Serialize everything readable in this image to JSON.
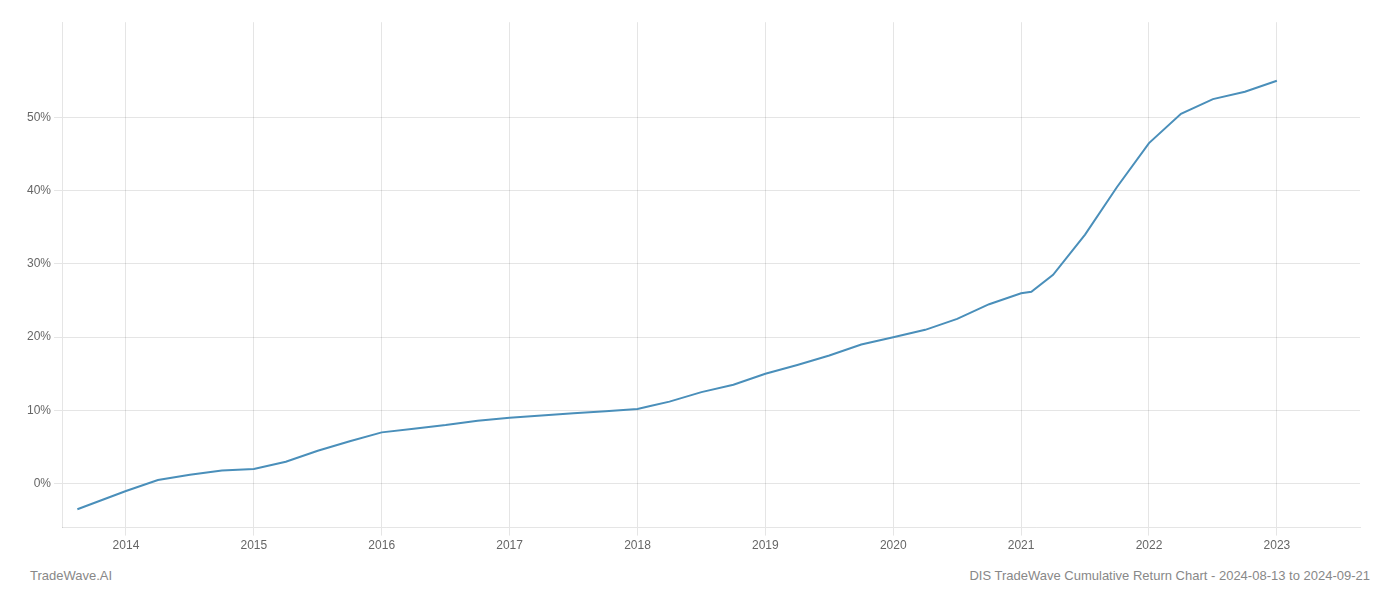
{
  "chart_data": {
    "type": "line",
    "x": [
      2013.62,
      2014.0,
      2014.25,
      2014.5,
      2014.75,
      2015.0,
      2015.25,
      2015.5,
      2015.75,
      2016.0,
      2016.25,
      2016.5,
      2016.75,
      2017.0,
      2017.25,
      2017.5,
      2017.75,
      2018.0,
      2018.1,
      2018.25,
      2018.5,
      2018.75,
      2019.0,
      2019.25,
      2019.5,
      2019.75,
      2020.0,
      2020.25,
      2020.5,
      2020.75,
      2021.0,
      2021.08,
      2021.25,
      2021.5,
      2021.75,
      2022.0,
      2022.25,
      2022.5,
      2022.75,
      2023.0
    ],
    "values": [
      -3.5,
      -1.0,
      0.5,
      1.2,
      1.8,
      2.0,
      3.0,
      4.5,
      5.8,
      7.0,
      7.5,
      8.0,
      8.6,
      9.0,
      9.3,
      9.6,
      9.9,
      10.2,
      10.6,
      11.2,
      12.5,
      13.5,
      15.0,
      16.2,
      17.5,
      19.0,
      20.0,
      21.0,
      22.5,
      24.5,
      26.0,
      26.2,
      28.5,
      34.0,
      40.5,
      46.5,
      50.5,
      52.5,
      53.5,
      55.0
    ],
    "color": "#4a8fba",
    "xlim": [
      2013.5,
      2023.65
    ],
    "xticks": [
      2014,
      2015,
      2016,
      2017,
      2018,
      2019,
      2020,
      2021,
      2022,
      2023
    ],
    "ylim": [
      -6,
      63
    ],
    "yticks": [
      {
        "value": 0,
        "label": "0%"
      },
      {
        "value": 10,
        "label": "10%"
      },
      {
        "value": 20,
        "label": "20%"
      },
      {
        "value": 30,
        "label": "30%"
      },
      {
        "value": 40,
        "label": "40%"
      },
      {
        "value": 50,
        "label": "50%"
      }
    ],
    "grid": true,
    "annotations": [
      "TradeWave.AI",
      "DIS TradeWave Cumulative Return Chart - 2024-08-13 to 2024-09-21"
    ]
  }
}
